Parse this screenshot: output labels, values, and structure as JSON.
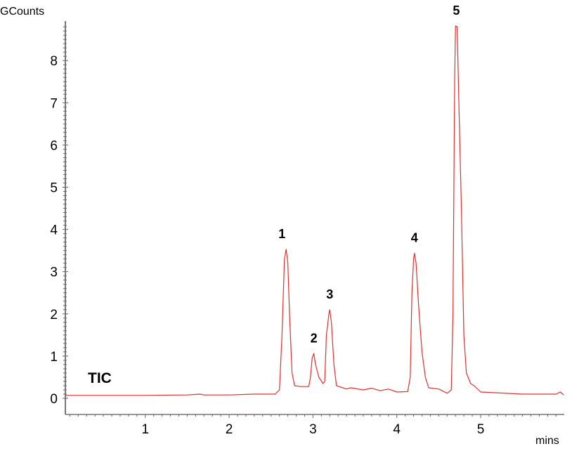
{
  "chart_data": {
    "type": "line",
    "title": "",
    "ylabel": "GCounts",
    "xlabel": "mins",
    "annotation": "TIC",
    "xlim": [
      0.05,
      5.99
    ],
    "ylim": [
      0,
      9.0
    ],
    "x_ticks": [
      "1",
      "2",
      "3",
      "4",
      "5"
    ],
    "y_ticks": [
      "0",
      "1",
      "2",
      "3",
      "4",
      "5",
      "6",
      "7",
      "8"
    ],
    "grid": false,
    "line_color": "#e03030",
    "peaks": [
      {
        "label": "1",
        "x": 2.68,
        "y": 3.53
      },
      {
        "label": "2",
        "x": 3.01,
        "y": 1.06
      },
      {
        "label": "3",
        "x": 3.2,
        "y": 2.1
      },
      {
        "label": "4",
        "x": 4.21,
        "y": 3.44
      },
      {
        "label": "5",
        "x": 4.71,
        "y": 8.82
      }
    ],
    "series": [
      {
        "points": [
          [
            0.05,
            0.07
          ],
          [
            0.5,
            0.07
          ],
          [
            1.0,
            0.07
          ],
          [
            1.5,
            0.08
          ],
          [
            1.65,
            0.1
          ],
          [
            1.7,
            0.08
          ],
          [
            2.0,
            0.08
          ],
          [
            2.3,
            0.1
          ],
          [
            2.55,
            0.1
          ],
          [
            2.6,
            0.2
          ],
          [
            2.63,
            1.5
          ],
          [
            2.66,
            3.3
          ],
          [
            2.68,
            3.53
          ],
          [
            2.7,
            3.2
          ],
          [
            2.72,
            2.0
          ],
          [
            2.75,
            0.6
          ],
          [
            2.78,
            0.3
          ],
          [
            2.85,
            0.28
          ],
          [
            2.95,
            0.28
          ],
          [
            2.97,
            0.5
          ],
          [
            2.99,
            0.95
          ],
          [
            3.01,
            1.06
          ],
          [
            3.03,
            0.8
          ],
          [
            3.07,
            0.5
          ],
          [
            3.12,
            0.35
          ],
          [
            3.14,
            0.4
          ],
          [
            3.16,
            1.5
          ],
          [
            3.19,
            2.0
          ],
          [
            3.2,
            2.1
          ],
          [
            3.22,
            1.8
          ],
          [
            3.25,
            0.8
          ],
          [
            3.28,
            0.3
          ],
          [
            3.4,
            0.22
          ],
          [
            3.45,
            0.25
          ],
          [
            3.6,
            0.2
          ],
          [
            3.7,
            0.24
          ],
          [
            3.8,
            0.18
          ],
          [
            3.9,
            0.22
          ],
          [
            4.0,
            0.15
          ],
          [
            4.13,
            0.16
          ],
          [
            4.16,
            0.5
          ],
          [
            4.18,
            2.5
          ],
          [
            4.2,
            3.3
          ],
          [
            4.21,
            3.44
          ],
          [
            4.23,
            3.2
          ],
          [
            4.26,
            2.2
          ],
          [
            4.3,
            1.1
          ],
          [
            4.34,
            0.5
          ],
          [
            4.38,
            0.25
          ],
          [
            4.5,
            0.22
          ],
          [
            4.6,
            0.12
          ],
          [
            4.65,
            0.2
          ],
          [
            4.67,
            2.0
          ],
          [
            4.69,
            7.5
          ],
          [
            4.7,
            8.82
          ],
          [
            4.72,
            8.8
          ],
          [
            4.74,
            7.0
          ],
          [
            4.77,
            4.5
          ],
          [
            4.8,
            1.5
          ],
          [
            4.83,
            0.6
          ],
          [
            4.88,
            0.35
          ],
          [
            4.92,
            0.3
          ],
          [
            5.0,
            0.15
          ],
          [
            5.5,
            0.1
          ],
          [
            5.9,
            0.1
          ],
          [
            5.95,
            0.15
          ],
          [
            5.99,
            0.08
          ]
        ]
      }
    ]
  }
}
